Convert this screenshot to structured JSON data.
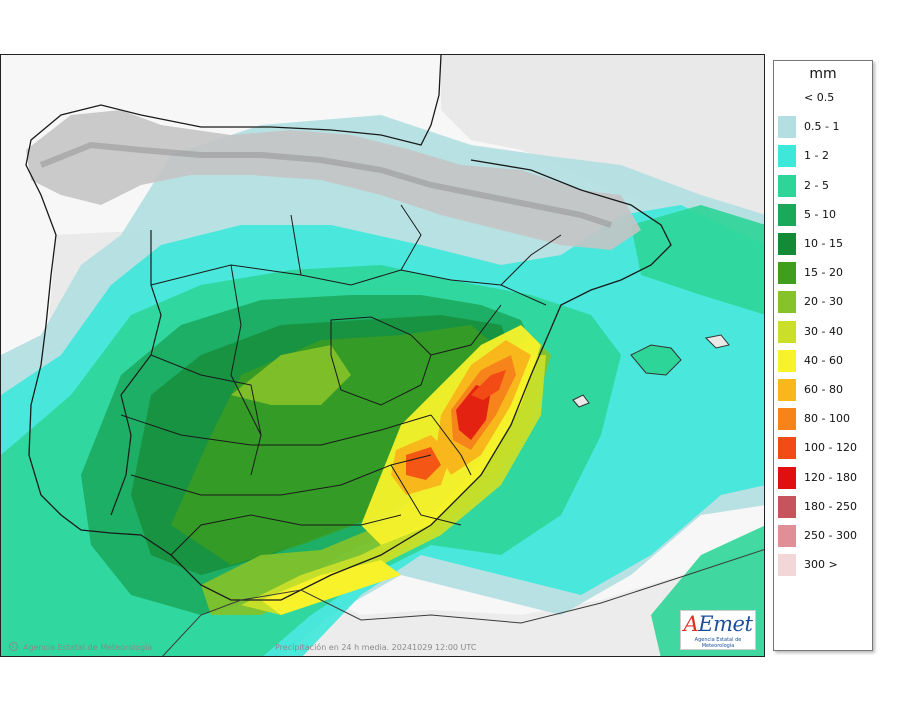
{
  "legend": {
    "unit": "mm",
    "classes": [
      {
        "label": "< 0.5",
        "color": "#ffffff"
      },
      {
        "label": "0.5 - 1",
        "color": "#b4dfe2"
      },
      {
        "label": "1 - 2",
        "color": "#3de8da"
      },
      {
        "label": "2 - 5",
        "color": "#2ed598"
      },
      {
        "label": "5 - 10",
        "color": "#1aa85a"
      },
      {
        "label": "10 - 15",
        "color": "#158a36"
      },
      {
        "label": "15 - 20",
        "color": "#3f9e1d"
      },
      {
        "label": "20 - 30",
        "color": "#86c229"
      },
      {
        "label": "30 - 40",
        "color": "#c9df29"
      },
      {
        "label": "40 - 60",
        "color": "#f8f22a"
      },
      {
        "label": "60 - 80",
        "color": "#f8b81c"
      },
      {
        "label": "80 - 100",
        "color": "#f7841a"
      },
      {
        "label": "100 - 120",
        "color": "#f24b15"
      },
      {
        "label": "120 - 180",
        "color": "#e01010"
      },
      {
        "label": "180 - 250",
        "color": "#c6545c"
      },
      {
        "label": "250 - 300",
        "color": "#df8f95"
      },
      {
        "label": "300 >",
        "color": "#f3d6d8"
      }
    ]
  },
  "map": {
    "colors": {
      "land_dry": "#e8e8e8",
      "relief": "#bdbdbd",
      "sea": "#f5f5f5",
      "border": "#1a1a1a",
      "province": "#8e8e8e"
    }
  },
  "footer": {
    "credit": "Agencia Estatal de Meteorología",
    "caption": "Precipitación en 24 h media. 20241029 12:00 UTC"
  },
  "logo": {
    "brand_a": "A",
    "brand_rest": "Emet",
    "tagline": "Agencia Estatal de Meteorología"
  }
}
